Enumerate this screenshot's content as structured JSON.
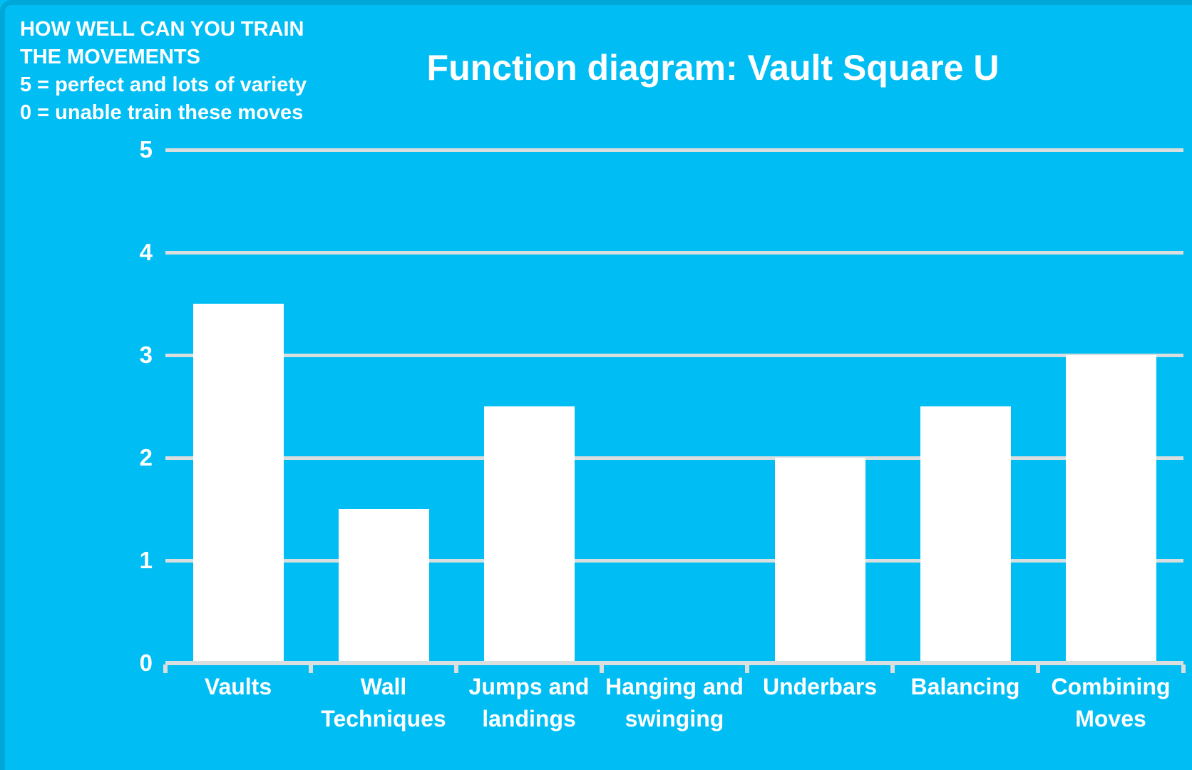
{
  "header": {
    "lines": [
      "HOW WELL CAN YOU TRAIN",
      "THE MOVEMENTS",
      "5 = perfect and lots of variety",
      "0 = unable train these moves"
    ]
  },
  "title": "Function diagram: Vault Square U",
  "chart_data": {
    "type": "bar",
    "title": "Function diagram: Vault Square U",
    "categories": [
      "Vaults",
      "Wall Techniques",
      "Jumps and landings",
      "Hanging and swinging",
      "Underbars",
      "Balancing",
      "Combining Moves"
    ],
    "values": [
      3.5,
      1.5,
      2.5,
      0,
      2,
      2.5,
      3
    ],
    "xlabel": "",
    "ylabel": "",
    "ylim": [
      0,
      5
    ],
    "yticks": [
      0,
      1,
      2,
      3,
      4,
      5
    ],
    "grid": true,
    "legend": "none",
    "bar_color": "#FFFFFF",
    "grid_color": "#D9DEDF",
    "axis_color": "#D9DEDF",
    "background_color": "#00BEF3",
    "text_color": "#FFFFFF"
  }
}
